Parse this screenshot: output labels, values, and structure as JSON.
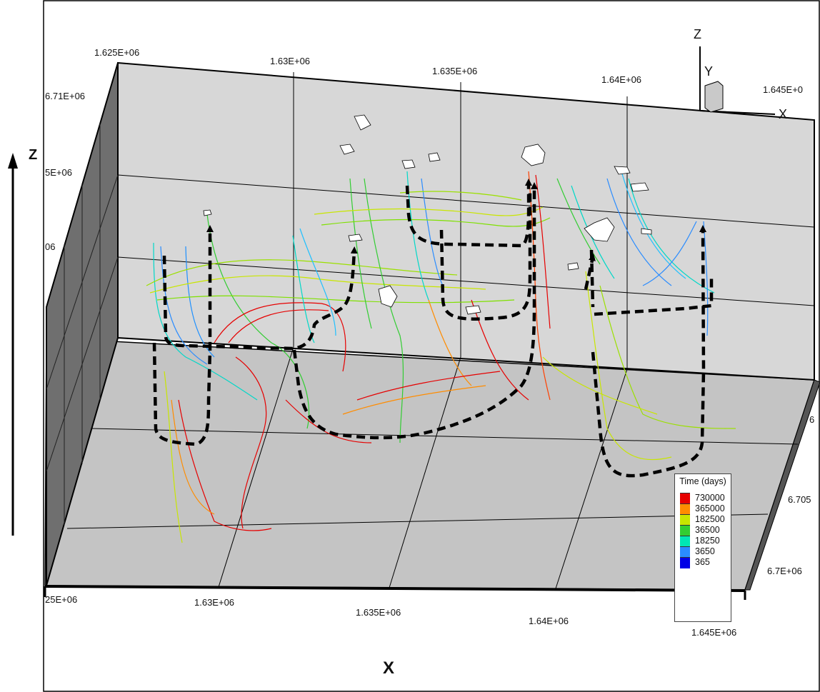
{
  "top_axis": {
    "x_ticks": [
      "1.625E+06",
      "1.63E+06",
      "1.635E+06",
      "1.64E+06",
      "1.645E+0"
    ]
  },
  "left_axis": {
    "y_ticks": [
      "6.71E+06",
      "5E+06",
      "06"
    ]
  },
  "bottom_axis": {
    "x_ticks": [
      "25E+06",
      "1.63E+06",
      "1.635E+06",
      "1.64E+06",
      "1.645E+06"
    ],
    "label": "X"
  },
  "right_axis": {
    "y_ticks": [
      "6",
      "6.705",
      "6.7E+06"
    ]
  },
  "vertical_axis_label": "Z",
  "orientation_triad": {
    "z": "Z",
    "y": "Y",
    "x": "X"
  },
  "legend": {
    "title": "Time (days)",
    "entries": [
      {
        "label": "730000",
        "color": "#e60000"
      },
      {
        "label": "365000",
        "color": "#ff8c00"
      },
      {
        "label": "182500",
        "color": "#c8e600"
      },
      {
        "label": "36500",
        "color": "#32cd32"
      },
      {
        "label": "18250",
        "color": "#00e6b4"
      },
      {
        "label": "3650",
        "color": "#2a8cff"
      },
      {
        "label": "365",
        "color": "#0000e6"
      }
    ]
  }
}
